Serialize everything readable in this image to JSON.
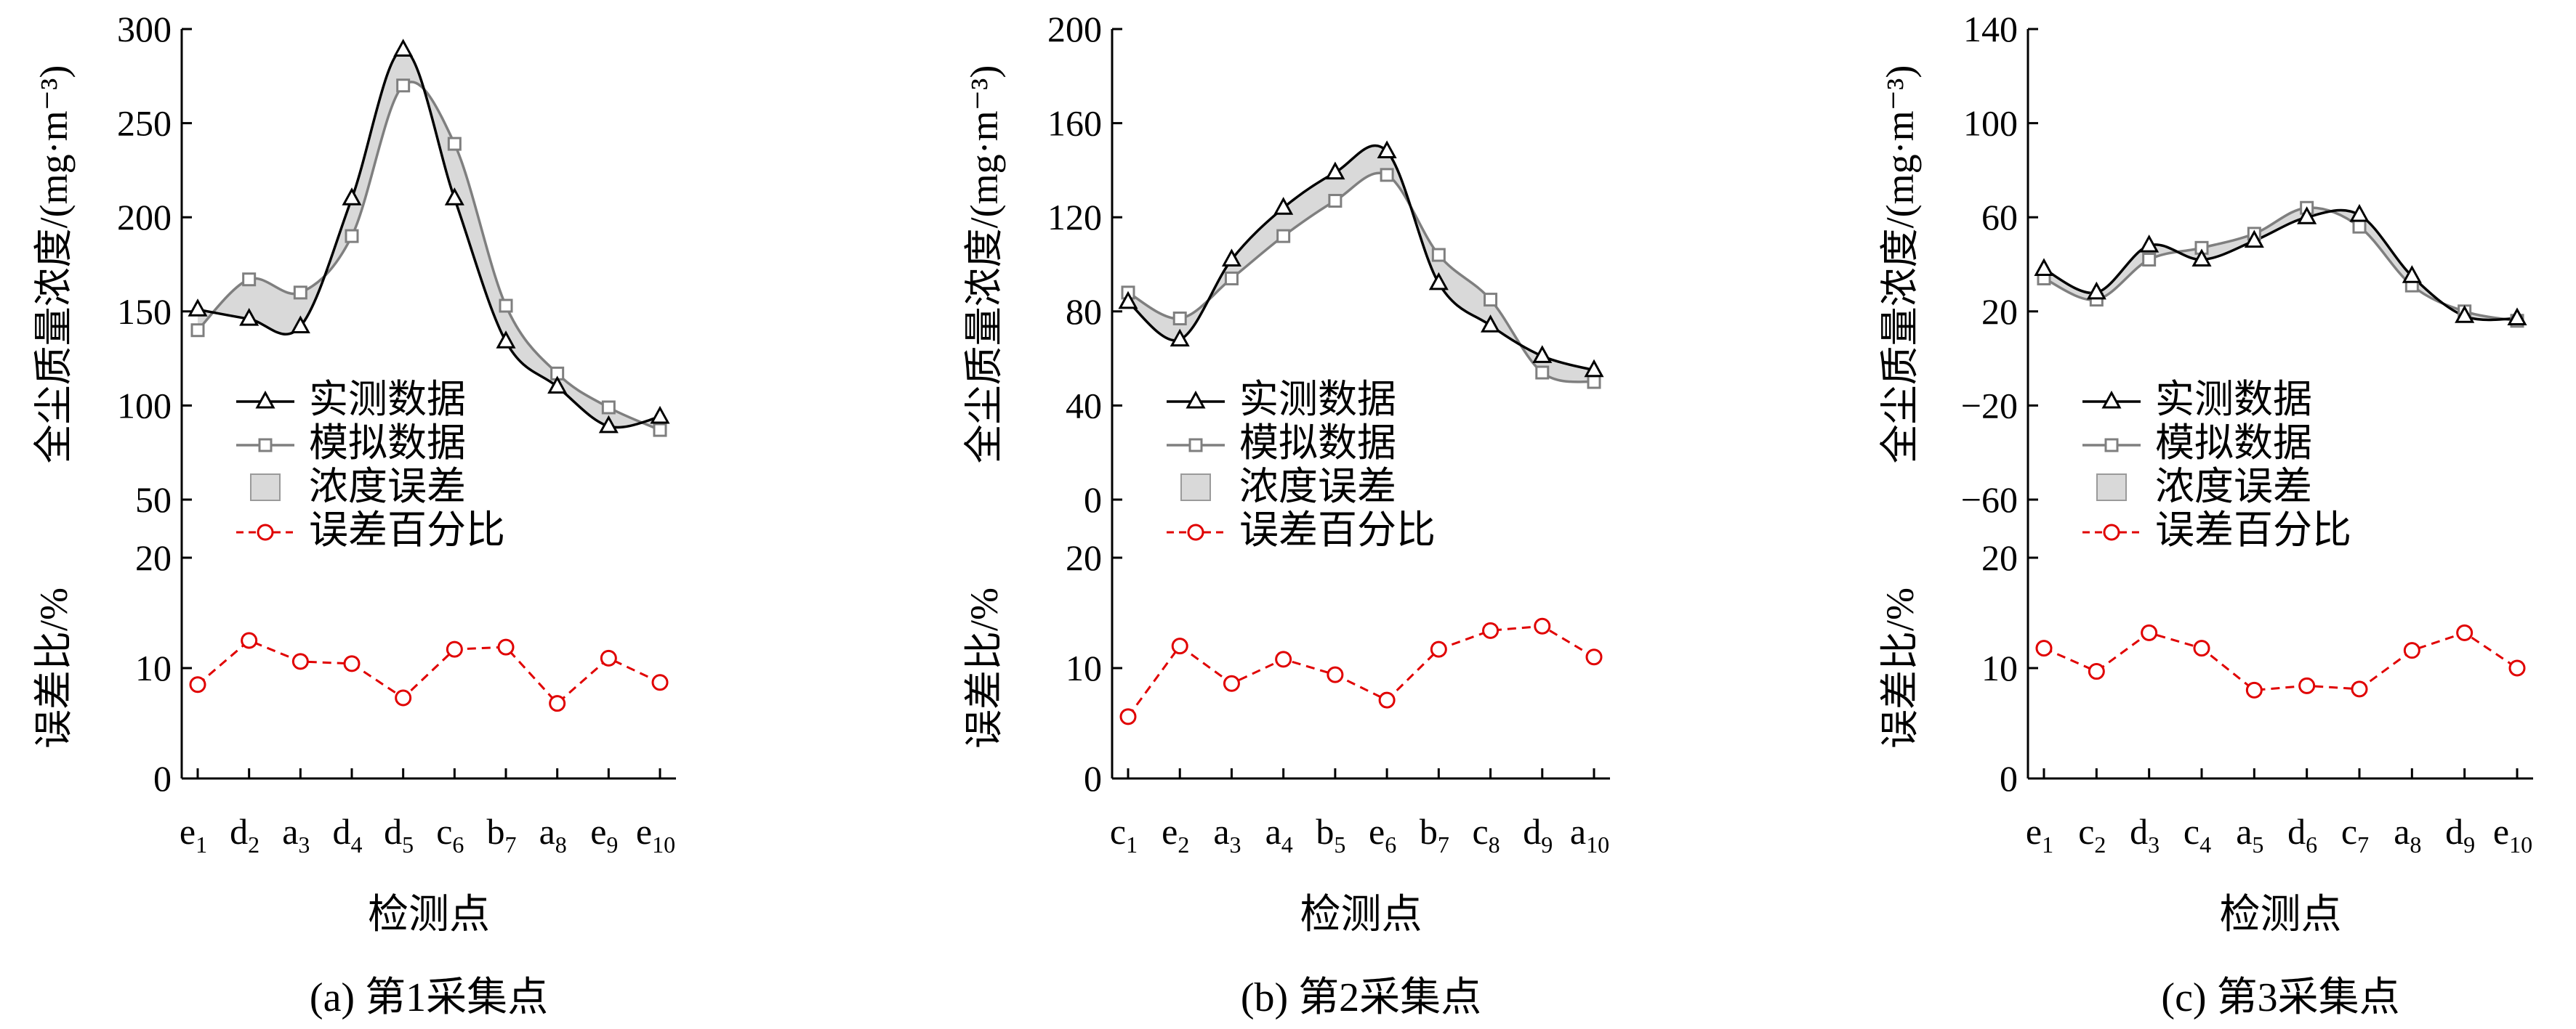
{
  "legend": {
    "measured": "实测数据",
    "simulated": "模拟数据",
    "band": "浓度误差",
    "percent": "误差百分比"
  },
  "axis_labels": {
    "top_y": "全尘质量浓度/(mg·m⁻³)",
    "bottom_y": "误差比/%",
    "x": "检测点"
  },
  "colors": {
    "measured": "#000000",
    "simulated": "#7f7f7f",
    "band": "#d9d9d9",
    "percent": "#e00000"
  },
  "chart_data": [
    {
      "type": "line",
      "caption": "(a) 第1采集点",
      "categories": [
        [
          "e",
          "1"
        ],
        [
          "d",
          "2"
        ],
        [
          "a",
          "3"
        ],
        [
          "d",
          "4"
        ],
        [
          "d",
          "5"
        ],
        [
          "c",
          "6"
        ],
        [
          "b",
          "7"
        ],
        [
          "a",
          "8"
        ],
        [
          "e",
          "9"
        ],
        [
          "e",
          "10"
        ]
      ],
      "top_ylim": [
        50,
        300
      ],
      "top_yticks": [
        50,
        100,
        150,
        200,
        250,
        300
      ],
      "series": [
        {
          "key": "measured",
          "values": [
            151,
            146,
            142,
            210,
            289,
            210,
            134,
            110,
            89,
            94
          ]
        },
        {
          "key": "simulated",
          "values": [
            140,
            167,
            160,
            190,
            270,
            239,
            153,
            117,
            99,
            87
          ]
        }
      ],
      "percent_values": [
        8.5,
        12.5,
        10.6,
        10.4,
        7.3,
        11.7,
        11.9,
        6.8,
        10.9,
        8.7
      ],
      "bottom_ylim": [
        0,
        20
      ],
      "bottom_yticks": [
        0,
        10,
        20
      ]
    },
    {
      "type": "line",
      "caption": "(b) 第2采集点",
      "categories": [
        [
          "c",
          "1"
        ],
        [
          "e",
          "2"
        ],
        [
          "a",
          "3"
        ],
        [
          "a",
          "4"
        ],
        [
          "b",
          "5"
        ],
        [
          "e",
          "6"
        ],
        [
          "b",
          "7"
        ],
        [
          "c",
          "8"
        ],
        [
          "d",
          "9"
        ],
        [
          "a",
          "10"
        ]
      ],
      "top_ylim": [
        0,
        200
      ],
      "top_yticks": [
        0,
        40,
        80,
        120,
        160,
        200
      ],
      "series": [
        {
          "key": "measured",
          "values": [
            84,
            68,
            102,
            124,
            139,
            148,
            92,
            74,
            61,
            55
          ]
        },
        {
          "key": "simulated",
          "values": [
            88,
            77,
            94,
            112,
            127,
            138,
            104,
            85,
            54,
            50
          ]
        }
      ],
      "percent_values": [
        5.6,
        12.0,
        8.6,
        10.8,
        9.4,
        7.1,
        11.7,
        13.4,
        13.8,
        11.0
      ],
      "bottom_ylim": [
        0,
        20
      ],
      "bottom_yticks": [
        0,
        10,
        20
      ]
    },
    {
      "type": "line",
      "caption": "(c) 第3采集点",
      "categories": [
        [
          "e",
          "1"
        ],
        [
          "c",
          "2"
        ],
        [
          "d",
          "3"
        ],
        [
          "c",
          "4"
        ],
        [
          "a",
          "5"
        ],
        [
          "d",
          "6"
        ],
        [
          "c",
          "7"
        ],
        [
          "a",
          "8"
        ],
        [
          "d",
          "9"
        ],
        [
          "e",
          "10"
        ]
      ],
      "top_ylim": [
        -60,
        140
      ],
      "top_yticks": [
        -60,
        -20,
        20,
        60,
        100,
        140
      ],
      "series": [
        {
          "key": "measured",
          "values": [
            38,
            28,
            48,
            42,
            50,
            60,
            61,
            35,
            18,
            17
          ]
        },
        {
          "key": "simulated",
          "values": [
            34,
            25,
            42,
            47,
            53,
            64,
            56,
            31,
            20,
            16
          ]
        }
      ],
      "percent_values": [
        11.8,
        9.7,
        13.2,
        11.8,
        8.0,
        8.4,
        8.1,
        11.6,
        13.2,
        10.0
      ],
      "bottom_ylim": [
        0,
        20
      ],
      "bottom_yticks": [
        0,
        10,
        20
      ]
    }
  ]
}
